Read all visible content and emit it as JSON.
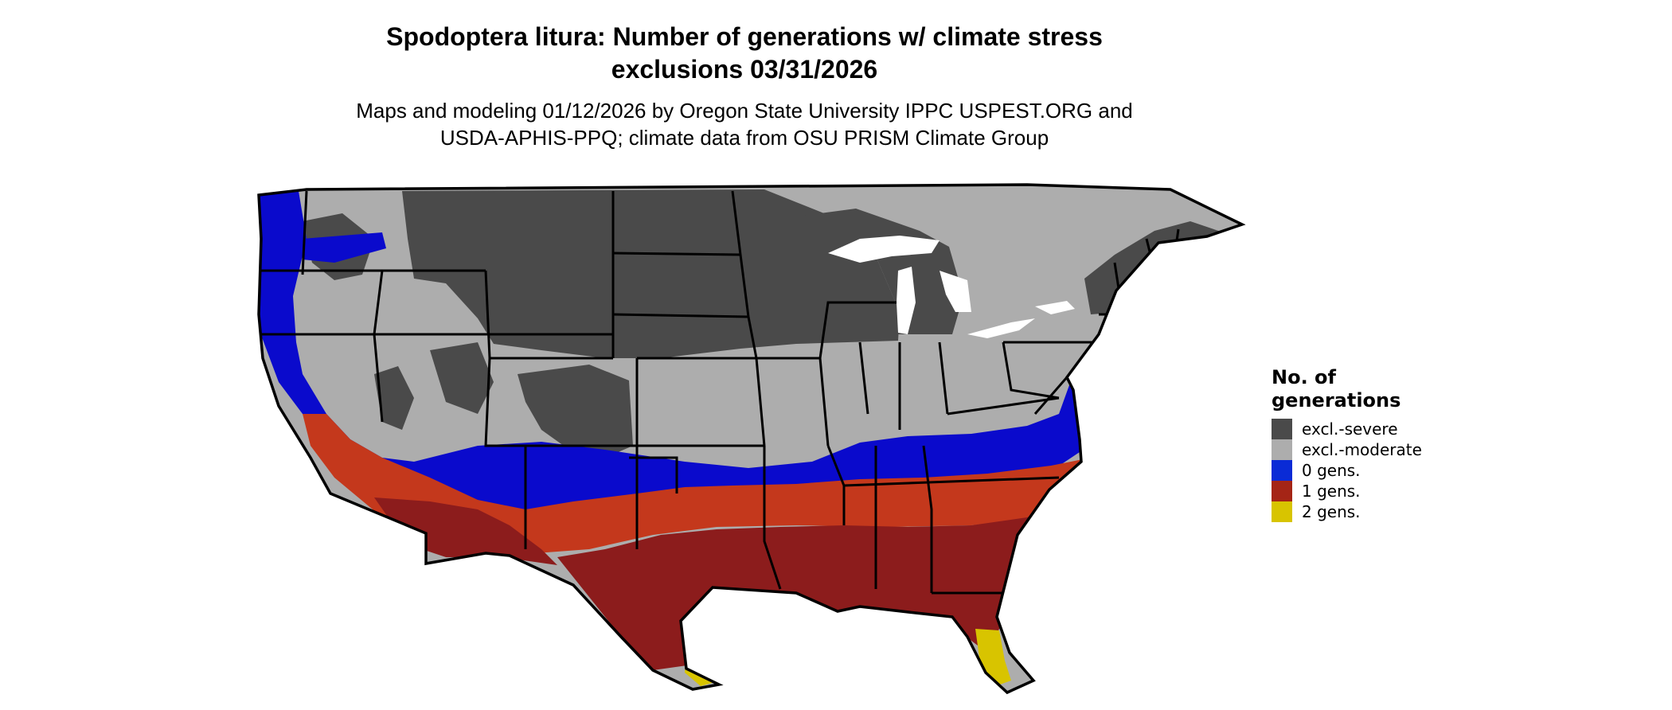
{
  "title": {
    "line1": "Spodoptera litura: Number of generations w/ climate stress",
    "line2": "exclusions 03/31/2026"
  },
  "subtitle": {
    "line1": "Maps and modeling 01/12/2026 by Oregon State University IPPC USPEST.ORG and",
    "line2": "USDA-APHIS-PPQ; climate data from OSU PRISM Climate Group"
  },
  "legend": {
    "title_line1": "No. of",
    "title_line2": "generations",
    "items": [
      {
        "label": "excl.-severe",
        "color": "#4a4a4a"
      },
      {
        "label": "excl.-moderate",
        "color": "#adadad"
      },
      {
        "label": "0 gens.",
        "color": "#0a2bd6"
      },
      {
        "label": "1 gens.",
        "color": "#a52516"
      },
      {
        "label": "2 gens.",
        "color": "#d8c400"
      }
    ]
  },
  "map": {
    "region": "contiguous-united-states",
    "zone_colors": {
      "excl_severe": "#4a4a4a",
      "excl_moderate": "#adadad",
      "zero_gens": "#0a0acc",
      "one_gens_dark": "#8c1c1c",
      "one_gens_light": "#c4381c",
      "two_gens": "#d8c400",
      "border": "#000000"
    }
  }
}
